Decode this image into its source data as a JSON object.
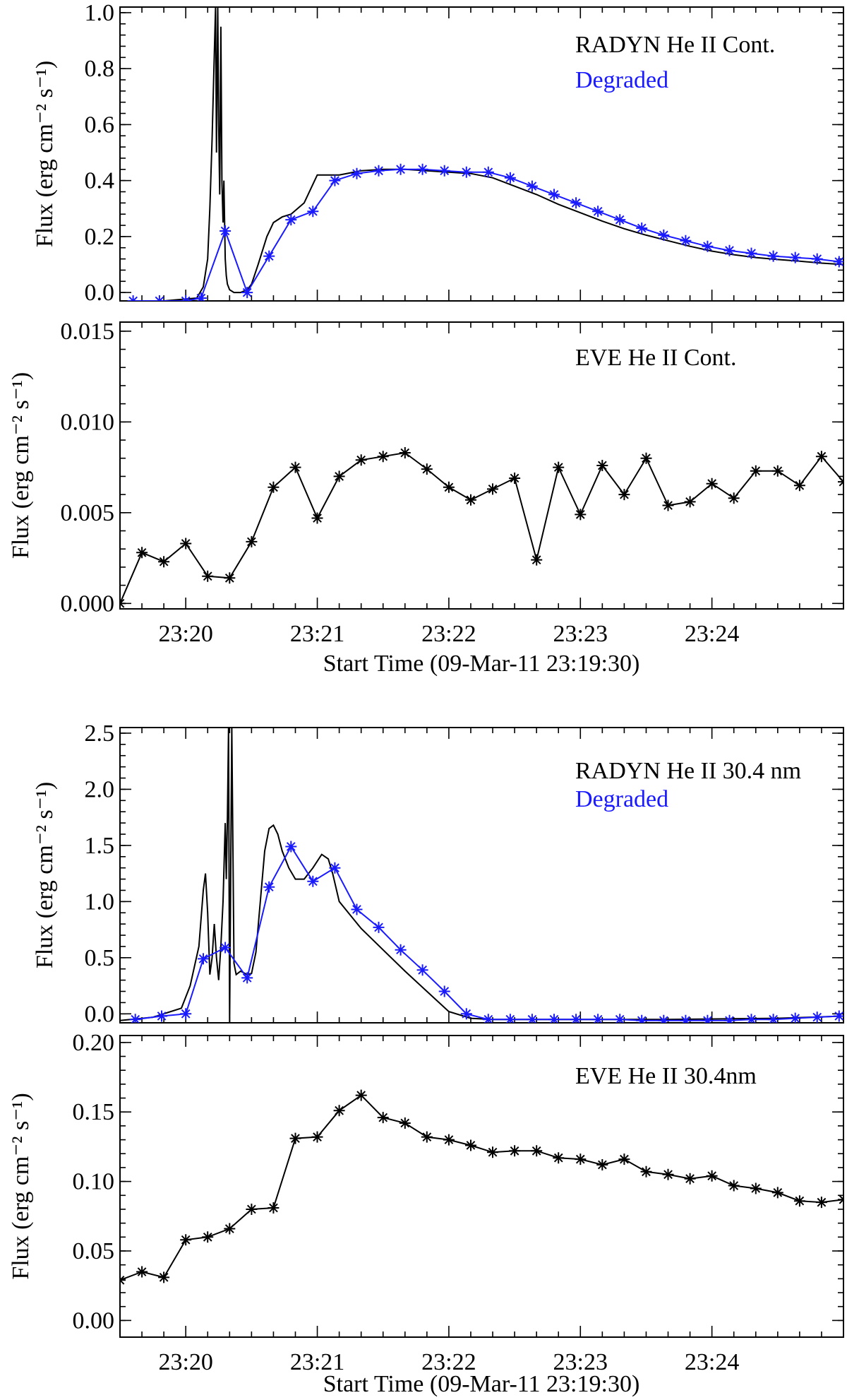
{
  "colors": {
    "model": "#000000",
    "degraded": "#1a1aff",
    "eve": "#000000",
    "axis": "#000000"
  },
  "figures": [
    {
      "xlabel": "Start Time (09-Mar-11 23:19:30)",
      "x_range_seconds": [
        0,
        330
      ],
      "x_tick_labels": [
        "23:20",
        "23:21",
        "23:22",
        "23:23",
        "23:24"
      ]
    },
    {
      "xlabel": "Start Time (09-Mar-11 23:19:30)",
      "x_range_seconds": [
        0,
        330
      ],
      "x_tick_labels": [
        "23:20",
        "23:21",
        "23:22",
        "23:23",
        "23:24"
      ]
    }
  ],
  "chart_data": [
    {
      "type": "line",
      "panel": "RADYN He II Cont.",
      "ylabel": "Flux (erg cm⁻² s⁻¹)",
      "ylim": [
        -0.03,
        1.02
      ],
      "yticks": [
        0.0,
        0.2,
        0.4,
        0.6,
        0.8,
        1.0
      ],
      "ytick_labels": [
        "0.0",
        "0.2",
        "0.4",
        "0.6",
        "0.8",
        "1.0"
      ],
      "legend": [
        "RADYN He II Cont.",
        "Degraded"
      ],
      "series": [
        {
          "name": "RADYN He II Cont.",
          "style": "line",
          "color": "#000000",
          "x": [
            0,
            20,
            35,
            38,
            40,
            41,
            42,
            43,
            43.6,
            44,
            44.6,
            45,
            45.5,
            46,
            46.5,
            47,
            47.4,
            48,
            48.5,
            49,
            50,
            52,
            55,
            58,
            60,
            63,
            65,
            67,
            70,
            74,
            78,
            84,
            90,
            95,
            100,
            110,
            120,
            130,
            140,
            150,
            160,
            170,
            180,
            190,
            200,
            210,
            220,
            230,
            240,
            250,
            260,
            270,
            280,
            290,
            300,
            310,
            320,
            330
          ],
          "y": [
            -0.03,
            -0.03,
            -0.02,
            0.02,
            0.12,
            0.3,
            0.55,
            0.85,
            1.02,
            0.5,
            1.02,
            0.6,
            0.35,
            0.95,
            0.4,
            0.25,
            0.4,
            0.12,
            0.06,
            0.03,
            0.01,
            0.0,
            0.0,
            0.01,
            0.03,
            0.1,
            0.15,
            0.2,
            0.25,
            0.27,
            0.28,
            0.32,
            0.42,
            0.42,
            0.42,
            0.435,
            0.44,
            0.44,
            0.435,
            0.43,
            0.425,
            0.41,
            0.38,
            0.35,
            0.315,
            0.285,
            0.255,
            0.228,
            0.205,
            0.185,
            0.165,
            0.148,
            0.135,
            0.125,
            0.118,
            0.112,
            0.105,
            0.1
          ]
        },
        {
          "name": "Degraded",
          "style": "line-stars",
          "color": "#1a1aff",
          "x": [
            6,
            18,
            30,
            37,
            48,
            58,
            68,
            78,
            88,
            98,
            108,
            118,
            128,
            138,
            148,
            158,
            168,
            178,
            188,
            198,
            208,
            218,
            228,
            238,
            248,
            258,
            268,
            278,
            288,
            298,
            308,
            318,
            328
          ],
          "y": [
            -0.03,
            -0.03,
            -0.03,
            -0.02,
            0.22,
            0.0,
            0.13,
            0.26,
            0.29,
            0.4,
            0.425,
            0.435,
            0.44,
            0.44,
            0.435,
            0.43,
            0.43,
            0.41,
            0.38,
            0.35,
            0.32,
            0.29,
            0.26,
            0.23,
            0.205,
            0.185,
            0.165,
            0.15,
            0.14,
            0.13,
            0.125,
            0.12,
            0.11
          ]
        }
      ]
    },
    {
      "type": "line",
      "panel": "EVE He II Cont.",
      "ylabel": "Flux (erg cm⁻² s⁻¹)",
      "ylim": [
        -0.0003,
        0.0155
      ],
      "yticks": [
        0.0,
        0.005,
        0.01,
        0.015
      ],
      "ytick_labels": [
        "0.000",
        "0.005",
        "0.010",
        "0.015"
      ],
      "legend": [
        "EVE He II Cont."
      ],
      "series": [
        {
          "name": "EVE He II Cont.",
          "style": "line-stars",
          "color": "#000000",
          "x": [
            0,
            10,
            20,
            30,
            40,
            50,
            60,
            70,
            80,
            90,
            100,
            110,
            120,
            130,
            140,
            150,
            160,
            170,
            180,
            190,
            200,
            210,
            220,
            230,
            240,
            250,
            260,
            270,
            280,
            290,
            300,
            310,
            320,
            330
          ],
          "y": [
            0.0,
            0.0028,
            0.0023,
            0.0033,
            0.0015,
            0.0014,
            0.0034,
            0.0064,
            0.0075,
            0.0047,
            0.007,
            0.0079,
            0.0081,
            0.0083,
            0.0074,
            0.0064,
            0.0057,
            0.0063,
            0.0069,
            0.0024,
            0.0075,
            0.0049,
            0.0076,
            0.006,
            0.008,
            0.0054,
            0.0056,
            0.0066,
            0.0058,
            0.0073,
            0.0073,
            0.0065,
            0.0081,
            0.0067
          ]
        }
      ]
    },
    {
      "type": "line",
      "panel": "RADYN He II 30.4 nm",
      "ylabel": "Flux (erg cm⁻² s⁻¹)",
      "ylim": [
        -0.08,
        2.55
      ],
      "yticks": [
        0.0,
        0.5,
        1.0,
        1.5,
        2.0,
        2.5
      ],
      "ytick_labels": [
        "0.0",
        "0.5",
        "1.0",
        "1.5",
        "2.0",
        "2.5"
      ],
      "legend": [
        "RADYN He II 30.4 nm",
        "Degraded"
      ],
      "series": [
        {
          "name": "RADYN He II 30.4 nm",
          "style": "line",
          "color": "#000000",
          "x": [
            0,
            15,
            28,
            32,
            36,
            38,
            39,
            40,
            41,
            42,
            43,
            44,
            45,
            46,
            47,
            48,
            48.5,
            49,
            49.5,
            50,
            51,
            52,
            53,
            55,
            58,
            60,
            62,
            64,
            66,
            68,
            70,
            72,
            74,
            77,
            80,
            84,
            88,
            92,
            95,
            97,
            100,
            105,
            110,
            120,
            130,
            140,
            150,
            160,
            170,
            180,
            200,
            250,
            300,
            330
          ],
          "y": [
            -0.06,
            -0.03,
            0.05,
            0.25,
            0.6,
            1.1,
            1.25,
            0.9,
            0.35,
            0.5,
            0.8,
            0.5,
            0.3,
            0.6,
            1.0,
            1.7,
            1.2,
            1.75,
            2.55,
            -0.08,
            2.55,
            0.45,
            0.35,
            0.38,
            0.35,
            0.36,
            0.55,
            1.0,
            1.45,
            1.65,
            1.68,
            1.6,
            1.45,
            1.3,
            1.2,
            1.2,
            1.3,
            1.42,
            1.38,
            1.25,
            1.0,
            0.88,
            0.76,
            0.57,
            0.38,
            0.2,
            0.02,
            -0.04,
            -0.05,
            -0.05,
            -0.05,
            -0.05,
            -0.04,
            -0.02
          ]
        },
        {
          "name": "Degraded",
          "style": "line-stars",
          "color": "#1a1aff",
          "x": [
            7,
            19,
            30,
            38,
            48,
            58,
            68,
            78,
            88,
            98,
            108,
            118,
            128,
            138,
            148,
            158,
            168,
            178,
            188,
            198,
            208,
            218,
            228,
            238,
            248,
            258,
            268,
            278,
            288,
            298,
            308,
            318,
            328
          ],
          "y": [
            -0.05,
            -0.02,
            0.0,
            0.49,
            0.59,
            0.32,
            1.13,
            1.49,
            1.18,
            1.3,
            0.93,
            0.77,
            0.57,
            0.39,
            0.2,
            0.0,
            -0.05,
            -0.05,
            -0.05,
            -0.05,
            -0.05,
            -0.05,
            -0.05,
            -0.06,
            -0.06,
            -0.06,
            -0.06,
            -0.06,
            -0.05,
            -0.05,
            -0.04,
            -0.03,
            -0.02
          ]
        }
      ]
    },
    {
      "type": "line",
      "panel": "EVE He II 30.4nm",
      "ylabel": "Flux (erg cm⁻² s⁻¹)",
      "ylim": [
        -0.012,
        0.205
      ],
      "yticks": [
        0.0,
        0.05,
        0.1,
        0.15,
        0.2
      ],
      "ytick_labels": [
        "0.00",
        "0.05",
        "0.10",
        "0.15",
        "0.20"
      ],
      "legend": [
        "EVE He II 30.4nm"
      ],
      "series": [
        {
          "name": "EVE He II 30.4nm",
          "style": "line-stars",
          "color": "#000000",
          "x": [
            0,
            10,
            20,
            30,
            40,
            50,
            60,
            70,
            80,
            90,
            100,
            110,
            120,
            130,
            140,
            150,
            160,
            170,
            180,
            190,
            200,
            210,
            220,
            230,
            240,
            250,
            260,
            270,
            280,
            290,
            300,
            310,
            320,
            330
          ],
          "y": [
            0.029,
            0.035,
            0.031,
            0.058,
            0.06,
            0.066,
            0.08,
            0.081,
            0.131,
            0.132,
            0.151,
            0.162,
            0.146,
            0.142,
            0.132,
            0.13,
            0.126,
            0.121,
            0.122,
            0.122,
            0.117,
            0.116,
            0.112,
            0.116,
            0.107,
            0.105,
            0.102,
            0.104,
            0.097,
            0.095,
            0.092,
            0.086,
            0.085,
            0.087
          ]
        }
      ]
    }
  ]
}
